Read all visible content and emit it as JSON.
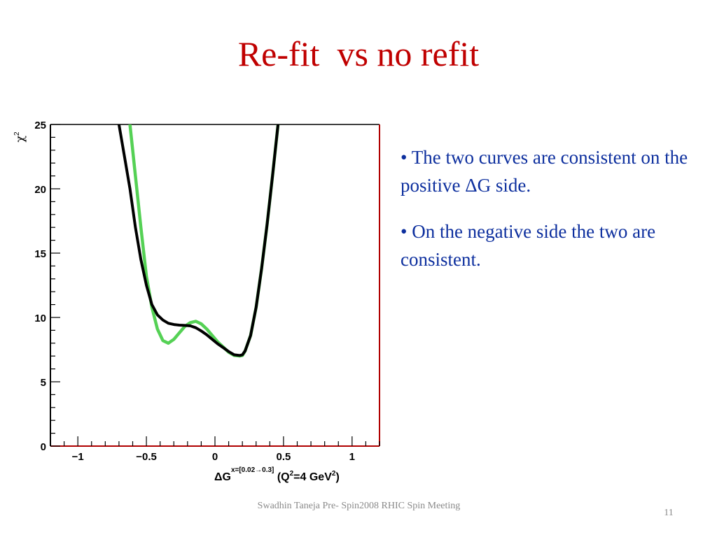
{
  "slide": {
    "title": "Re-fit  vs no refit",
    "bullets": [
      "• The two curves are consistent on the positive ΔG side.",
      "• On the negative side the two are consistent."
    ],
    "footer": "Swadhin Taneja  Pre- Spin2008  RHIC Spin Meeting",
    "page_number": "11"
  },
  "colors": {
    "title": "#c00000",
    "bullet_text": "#0d2f9e",
    "frame_right": "#b00000",
    "series_black": "#000000",
    "series_green": "#55d155"
  },
  "chart_data": {
    "type": "line",
    "ylabel": "χ",
    "ylabel_superscript": "2",
    "xlabel_parts": {
      "main": "ΔG",
      "superscript": "x=[0.02→0.3]",
      "rest": "(Q",
      "rest_sup": "2",
      "rest_end": "=4 GeV",
      "rest_end_sup": "2",
      "close": ")"
    },
    "xlim": [
      -1.2,
      1.2
    ],
    "ylim": [
      0,
      25
    ],
    "x_ticks": [
      -1,
      -0.5,
      0,
      0.5,
      1
    ],
    "x_tick_labels": [
      "−1",
      "−0.5",
      "0",
      "0.5",
      "1"
    ],
    "y_ticks": [
      0,
      5,
      10,
      15,
      20,
      25
    ],
    "y_tick_labels": [
      "0",
      "5",
      "10",
      "15",
      "20",
      "25"
    ],
    "grid": false,
    "legend": "none",
    "series": [
      {
        "color": "#55d155",
        "x": [
          -0.62,
          -0.58,
          -0.54,
          -0.5,
          -0.46,
          -0.42,
          -0.38,
          -0.34,
          -0.3,
          -0.26,
          -0.22,
          -0.18,
          -0.14,
          -0.1,
          -0.06,
          -0.02,
          0.02,
          0.06,
          0.1,
          0.14,
          0.18,
          0.2,
          0.22,
          0.26,
          0.3,
          0.34,
          0.38,
          0.42,
          0.46
        ],
        "y": [
          25,
          21,
          17,
          13.2,
          10.8,
          9.1,
          8.2,
          8.0,
          8.3,
          8.8,
          9.3,
          9.6,
          9.7,
          9.5,
          9.1,
          8.6,
          8.1,
          7.7,
          7.3,
          7.05,
          7.0,
          7.05,
          7.4,
          8.6,
          10.8,
          13.8,
          17.2,
          21.0,
          25
        ]
      },
      {
        "color": "#000000",
        "x": [
          -0.7,
          -0.66,
          -0.62,
          -0.58,
          -0.54,
          -0.5,
          -0.46,
          -0.42,
          -0.38,
          -0.34,
          -0.3,
          -0.26,
          -0.22,
          -0.18,
          -0.14,
          -0.1,
          -0.06,
          -0.02,
          0.02,
          0.06,
          0.1,
          0.14,
          0.18,
          0.2,
          0.22,
          0.26,
          0.3,
          0.34,
          0.38,
          0.42,
          0.46
        ],
        "y": [
          25,
          22.5,
          20.0,
          17.0,
          14.5,
          12.5,
          11.0,
          10.2,
          9.8,
          9.55,
          9.45,
          9.4,
          9.38,
          9.35,
          9.2,
          8.95,
          8.65,
          8.3,
          7.95,
          7.65,
          7.35,
          7.1,
          7.05,
          7.1,
          7.4,
          8.6,
          10.8,
          13.8,
          17.2,
          21.0,
          25
        ]
      }
    ]
  }
}
